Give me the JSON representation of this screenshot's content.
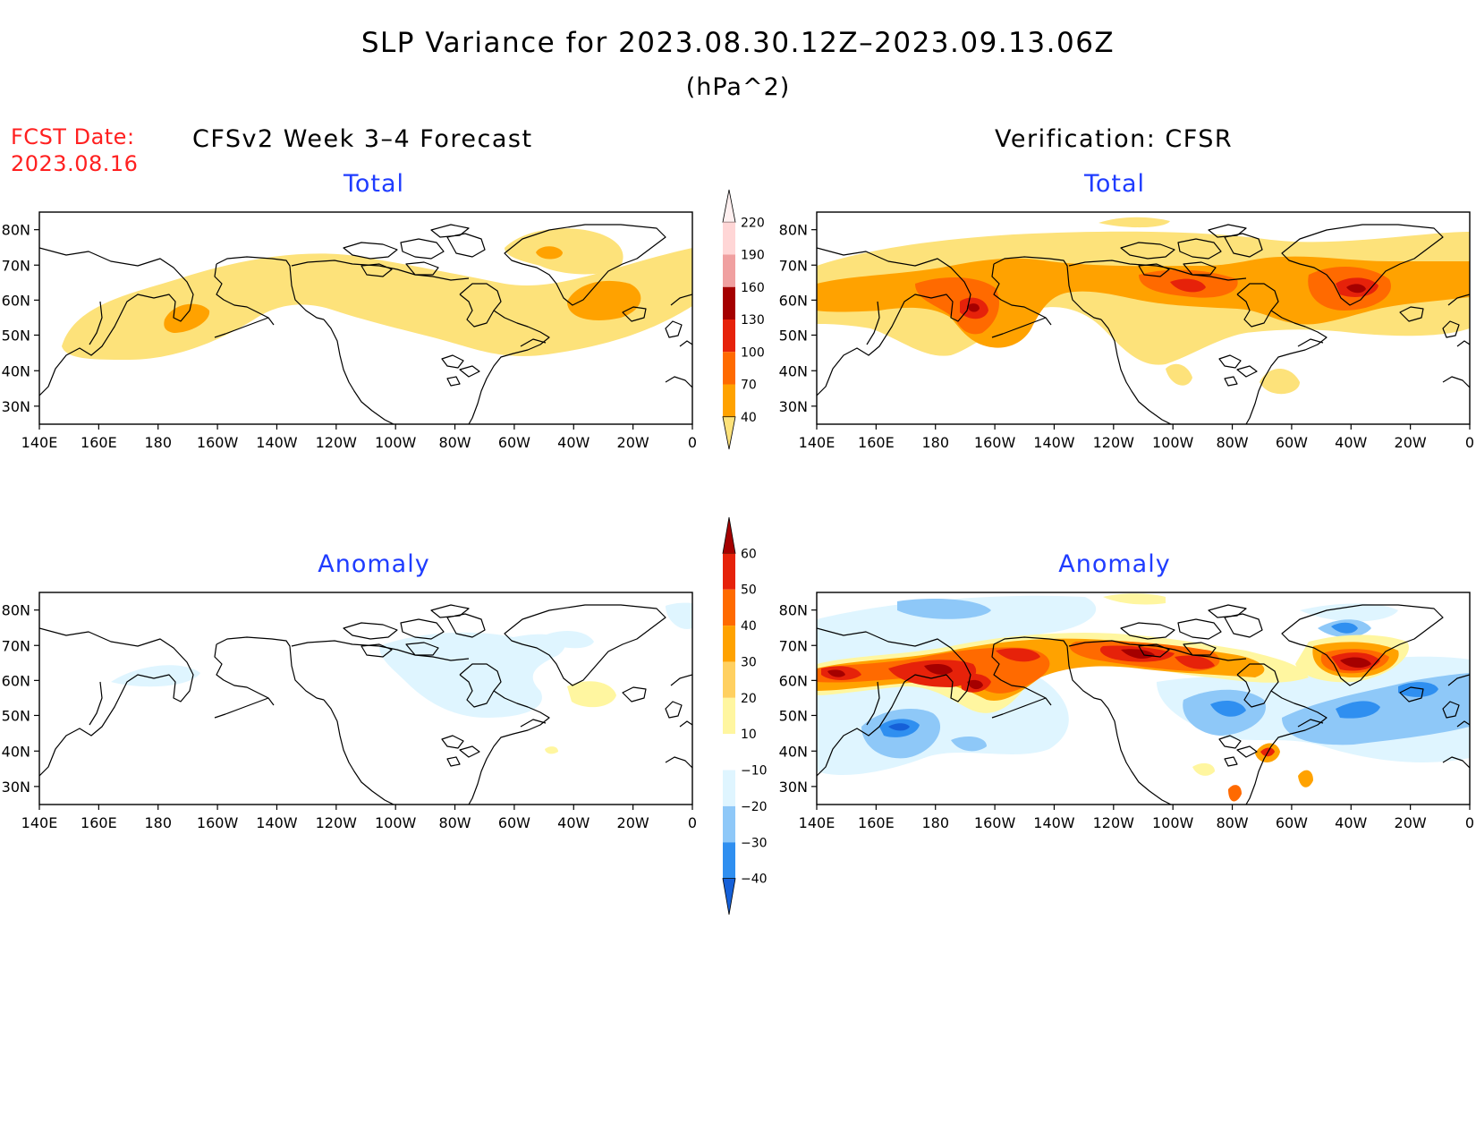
{
  "title": "SLP Variance for 2023.08.30.12Z–2023.09.13.06Z",
  "units": "(hPa^2)",
  "fcst_label": "FCST Date:",
  "fcst_date": "2023.08.16",
  "left_header": "CFSv2 Week 3–4 Forecast",
  "right_header": "Verification: CFSR",
  "panel_titles": {
    "forecast_total": "Total",
    "verification_total": "Total",
    "forecast_anomaly": "Anomaly",
    "verification_anomaly": "Anomaly"
  },
  "axes": {
    "lat_ticks": [
      "80N",
      "70N",
      "60N",
      "50N",
      "40N",
      "30N"
    ],
    "lon_ticks": [
      "140E",
      "160E",
      "180",
      "160W",
      "140W",
      "120W",
      "100W",
      "80W",
      "60W",
      "40W",
      "20W",
      "0"
    ]
  },
  "colorbars": {
    "total": {
      "levels": [
        "40",
        "70",
        "100",
        "130",
        "160",
        "190",
        "220"
      ],
      "colors": [
        "#fde27a",
        "#ffa200",
        "#ff6a00",
        "#e6220a",
        "#a50000",
        "#f0a0a0",
        "#ffd6d6",
        "#fff0f0"
      ]
    },
    "anomaly": {
      "levels": [
        "−40",
        "−30",
        "−20",
        "−10",
        "10",
        "20",
        "30",
        "40",
        "50",
        "60"
      ],
      "colors": [
        "#1560d8",
        "#2f8ff0",
        "#8ec8f8",
        "#dff5ff",
        "#ffffff",
        "#fff6a0",
        "#ffd060",
        "#ffa200",
        "#ff6a00",
        "#e6220a",
        "#a50000"
      ]
    }
  }
}
